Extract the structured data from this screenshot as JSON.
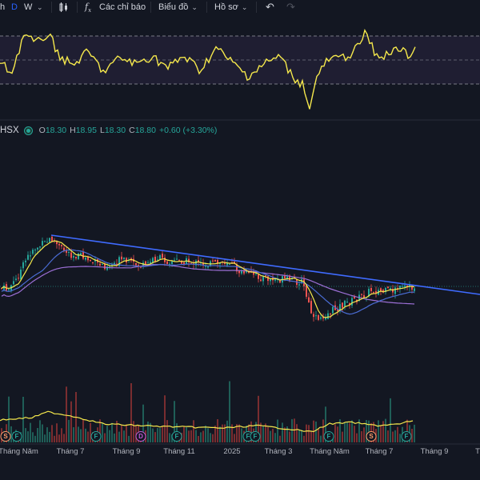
{
  "toolbar": {
    "interval_partial": "h",
    "interval_d": "D",
    "interval_w": "W",
    "indicators_label": "Các chỉ báo",
    "chart_type_label": "Biểu đồ",
    "profile_label": "Hồ sơ"
  },
  "legend": {
    "exchange": "HSX",
    "o_label": "O",
    "o_value": "18.30",
    "h_label": "H",
    "h_value": "18.95",
    "l_label": "L",
    "l_value": "18.30",
    "c_label": "C",
    "c_value": "18.80",
    "change": "+0.60 (+3.30%)"
  },
  "xaxis": [
    "Tháng Năm",
    "Tháng 7",
    "Tháng 9",
    "Tháng 11",
    "2025",
    "Tháng 3",
    "Tháng Năm",
    "Tháng 7",
    "Tháng 9",
    "T"
  ],
  "events": [
    {
      "type": "S",
      "label": "S"
    },
    {
      "type": "F",
      "label": "F"
    },
    {
      "type": "F",
      "label": "F"
    },
    {
      "type": "D",
      "label": "D"
    },
    {
      "type": "F",
      "label": "F"
    },
    {
      "type": "F",
      "label": "F"
    },
    {
      "type": "F",
      "label": "F"
    },
    {
      "type": "F",
      "label": "F"
    },
    {
      "type": "S",
      "label": "S"
    },
    {
      "type": "F",
      "label": "F"
    }
  ],
  "colors": {
    "background": "#131722",
    "up": "#26a69a",
    "down": "#ef5350",
    "oscillator": "#f5e84c",
    "trendline": "#3f6bff",
    "ma_short": "#f5e84c",
    "ma_mid": "#4a6cd4",
    "ma_long": "#9c6fd6"
  }
}
